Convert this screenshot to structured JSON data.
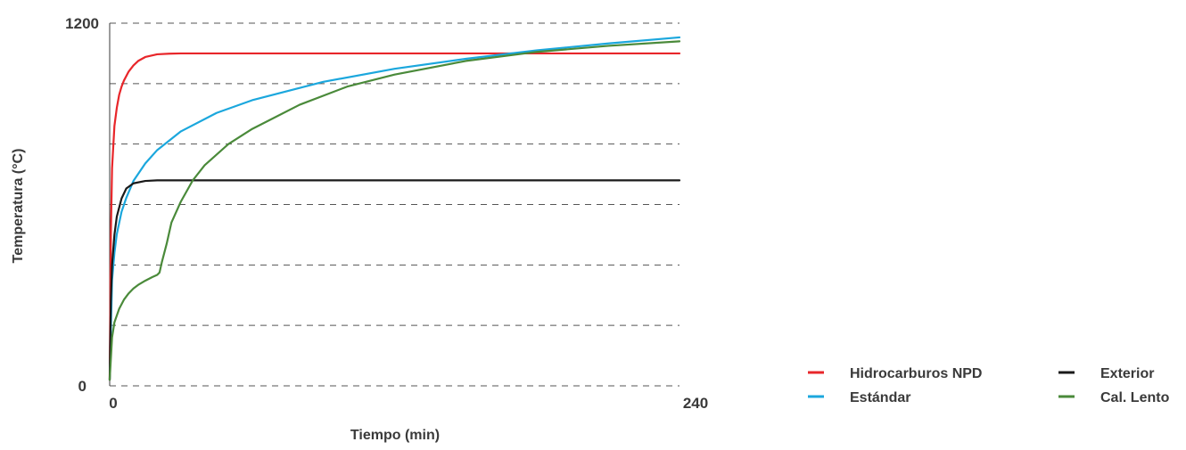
{
  "chart_data": {
    "type": "line",
    "title": "",
    "xlabel": "Tiempo (min)",
    "ylabel": "Temperatura (°C)",
    "xlim": [
      0,
      240
    ],
    "ylim": [
      0,
      1200
    ],
    "x_ticks": [
      {
        "value": 0,
        "label": "0"
      },
      {
        "value": 240,
        "label": "240"
      }
    ],
    "y_ticks": [
      {
        "value": 0,
        "label": "0"
      },
      {
        "value": 1200,
        "label": "1200"
      }
    ],
    "grid": true,
    "grid_y": [
      200,
      400,
      600,
      800,
      1000,
      1200
    ],
    "legend_position": "bottom-right",
    "series": [
      {
        "name": "Hidrocarburos NPD",
        "color": "#e8262a",
        "x": [
          0,
          0.5,
          1,
          2,
          3,
          4,
          5,
          6,
          8,
          10,
          12,
          15,
          20,
          25,
          30,
          40,
          60,
          100,
          150,
          200,
          240
        ],
        "y": [
          20,
          500,
          720,
          860,
          920,
          963,
          990,
          1010,
          1040,
          1060,
          1075,
          1088,
          1097,
          1099,
          1100,
          1100,
          1100,
          1100,
          1100,
          1100,
          1100
        ]
      },
      {
        "name": "Estándar",
        "color": "#1ba7dd",
        "x": [
          0,
          1,
          2,
          3,
          5,
          7,
          10,
          15,
          20,
          30,
          45,
          60,
          90,
          120,
          150,
          180,
          210,
          240
        ],
        "y": [
          20,
          350,
          440,
          502,
          576,
          622,
          678,
          736,
          780,
          842,
          903,
          945,
          1006,
          1049,
          1082,
          1110,
          1133,
          1153
        ]
      },
      {
        "name": "Exterior",
        "color": "#1a1a1a",
        "x": [
          0,
          0.5,
          1,
          2,
          3,
          5,
          7,
          10,
          15,
          20,
          30,
          60,
          120,
          180,
          240
        ],
        "y": [
          20,
          280,
          400,
          500,
          560,
          620,
          653,
          670,
          678,
          680,
          680,
          680,
          680,
          680,
          680
        ]
      },
      {
        "name": "Cal. Lento",
        "color": "#4a8a3a",
        "x": [
          0,
          1,
          2,
          4,
          6,
          8,
          10,
          12,
          15,
          18,
          20,
          21,
          22,
          24,
          26,
          30,
          35,
          40,
          50,
          60,
          80,
          100,
          120,
          150,
          180,
          210,
          240
        ],
        "y": [
          20,
          160,
          210,
          255,
          285,
          306,
          322,
          334,
          348,
          360,
          367,
          375,
          410,
          470,
          540,
          610,
          680,
          730,
          800,
          850,
          930,
          990,
          1030,
          1075,
          1105,
          1125,
          1140
        ]
      }
    ]
  }
}
